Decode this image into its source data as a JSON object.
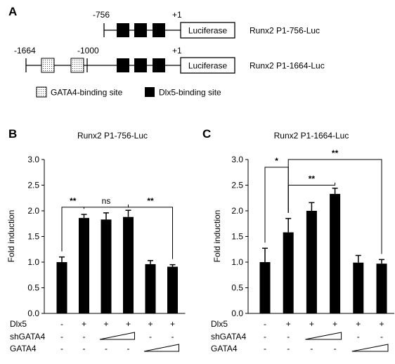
{
  "panel_a": {
    "letter": "A",
    "constructs": [
      {
        "name": "Runx2 P1-756-Luc",
        "start_label": "-756",
        "tss_label": "+1",
        "mid_label": "",
        "gata4_sites": 0,
        "dlx5_sites": 3,
        "reporter": "Luciferase"
      },
      {
        "name": "Runx2 P1-1664-Luc",
        "start_label": "-1664",
        "tss_label": "+1",
        "mid_label": "-1000",
        "gata4_sites": 2,
        "dlx5_sites": 3,
        "reporter": "Luciferase"
      }
    ],
    "legend": [
      {
        "label": "GATA4-binding site",
        "style": "dotted"
      },
      {
        "label": "Dlx5-binding site",
        "style": "solid-black"
      }
    ]
  },
  "chart_data": [
    {
      "panel": "B",
      "type": "bar",
      "title": "Runx2 P1-756-Luc",
      "ylabel": "Fold induction",
      "ylim": [
        0,
        3.0
      ],
      "yticks": [
        "0.0",
        "0.5",
        "1.0",
        "1.5",
        "2.0",
        "2.5",
        "3.0"
      ],
      "values": [
        1.0,
        1.86,
        1.83,
        1.88,
        0.96,
        0.91
      ],
      "errors": [
        0.1,
        0.07,
        0.13,
        0.13,
        0.07,
        0.04
      ],
      "bar_color": "#000000",
      "conditions": [
        {
          "row": "Dlx5",
          "values": [
            "-",
            "+",
            "+",
            "+",
            "+",
            "+"
          ]
        },
        {
          "row": "shGATA4",
          "values": [
            "-",
            "-",
            "",
            "",
            "-",
            "-"
          ],
          "ramp_from": 2,
          "ramp_to": 3
        },
        {
          "row": "GATA4",
          "values": [
            "-",
            "-",
            "-",
            "-",
            "",
            ""
          ],
          "ramp_from": 4,
          "ramp_to": 5
        }
      ],
      "significance": [
        {
          "from": 0,
          "to": 1,
          "label": "**"
        },
        {
          "from": 1,
          "to": 3,
          "label": "ns"
        },
        {
          "from": 3,
          "to": 5,
          "label": "**"
        }
      ]
    },
    {
      "panel": "C",
      "type": "bar",
      "title": "Runx2 P1-1664-Luc",
      "ylabel": "Fold induction",
      "ylim": [
        0,
        3.0
      ],
      "yticks": [
        "0.0",
        "0.5",
        "1.0",
        "1.5",
        "2.0",
        "2.5",
        "3.0"
      ],
      "values": [
        1.0,
        1.58,
        2.0,
        2.33,
        0.99,
        0.97
      ],
      "errors": [
        0.27,
        0.27,
        0.16,
        0.11,
        0.14,
        0.08
      ],
      "bar_color": "#000000",
      "conditions": [
        {
          "row": "Dlx5",
          "values": [
            "-",
            "+",
            "+",
            "+",
            "+",
            "+"
          ]
        },
        {
          "row": "shGATA4",
          "values": [
            "-",
            "-",
            "",
            "",
            "-",
            "-"
          ],
          "ramp_from": 2,
          "ramp_to": 3
        },
        {
          "row": "GATA4",
          "values": [
            "-",
            "-",
            "-",
            "-",
            "",
            ""
          ],
          "ramp_from": 4,
          "ramp_to": 5
        }
      ],
      "significance": [
        {
          "from": 0,
          "to": 1,
          "label": "*"
        },
        {
          "from": 1,
          "to": 3,
          "label": "**"
        },
        {
          "from": 1,
          "to": 5,
          "label": "**"
        }
      ]
    }
  ]
}
